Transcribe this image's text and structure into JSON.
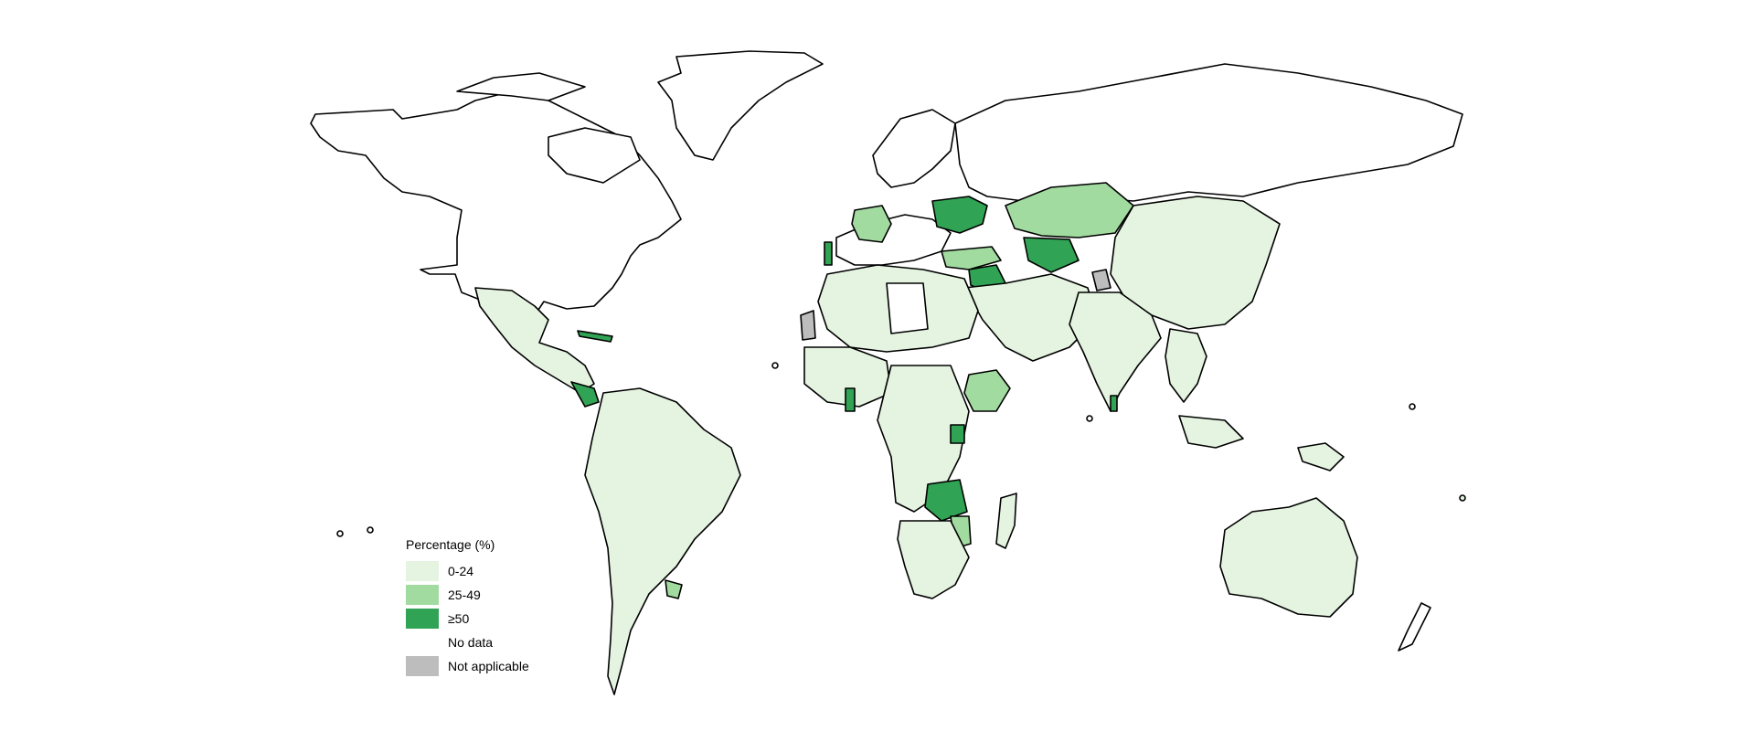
{
  "colors": {
    "low": "#e4f4e0",
    "mid": "#a2dba0",
    "high": "#31a354",
    "none": "#ffffff",
    "na": "#bdbdbd",
    "border": "#000000"
  },
  "legend": {
    "title": "Percentage (%)",
    "items": [
      {
        "label": "0-24",
        "color": "#e4f4e0"
      },
      {
        "label": "25-49",
        "color": "#a2dba0"
      },
      {
        "label": "≥50",
        "color": "#31a354"
      },
      {
        "label": "No data",
        "color": "#ffffff"
      },
      {
        "label": "Not applicable",
        "color": "#bdbdbd"
      }
    ]
  }
}
